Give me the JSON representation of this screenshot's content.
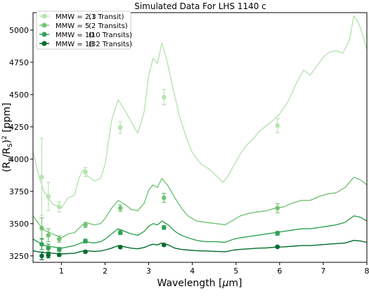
{
  "chart_data": {
    "type": "line",
    "title": "Simulated Data For LHS 1140 c",
    "xlabel_parts": [
      "Wavelength [",
      "μ",
      "m]"
    ],
    "ylabel_parts": [
      "(R",
      "p",
      "/R",
      "S",
      ")",
      "2",
      " [ppm]"
    ],
    "xlim": [
      0.35,
      8.0
    ],
    "ylim": [
      3200,
      5135
    ],
    "x_ticks": [
      1,
      2,
      3,
      4,
      5,
      6,
      7,
      8
    ],
    "y_ticks": [
      3250,
      3500,
      3750,
      4000,
      4250,
      4500,
      4750,
      5000
    ],
    "grid": false,
    "legend_position": "top-left",
    "series": [
      {
        "name": "MMW = 2.3 (1 Transit)",
        "label_mmw": "MMW = 2.3",
        "label_transits": "(1 Transit)",
        "color": "#b8e3b2",
        "model": [
          [
            0.35,
            4050
          ],
          [
            0.5,
            3850
          ],
          [
            0.6,
            3750
          ],
          [
            0.8,
            3650
          ],
          [
            1.0,
            3620
          ],
          [
            1.15,
            3700
          ],
          [
            1.3,
            3720
          ],
          [
            1.4,
            3850
          ],
          [
            1.5,
            3920
          ],
          [
            1.6,
            3870
          ],
          [
            1.75,
            3830
          ],
          [
            1.9,
            3850
          ],
          [
            2.0,
            3960
          ],
          [
            2.15,
            4300
          ],
          [
            2.3,
            4460
          ],
          [
            2.45,
            4380
          ],
          [
            2.6,
            4290
          ],
          [
            2.75,
            4200
          ],
          [
            2.9,
            4370
          ],
          [
            3.0,
            4650
          ],
          [
            3.1,
            4780
          ],
          [
            3.2,
            4740
          ],
          [
            3.3,
            4900
          ],
          [
            3.4,
            4790
          ],
          [
            3.55,
            4560
          ],
          [
            3.7,
            4340
          ],
          [
            3.85,
            4180
          ],
          [
            4.0,
            4050
          ],
          [
            4.2,
            3960
          ],
          [
            4.4,
            3920
          ],
          [
            4.55,
            3870
          ],
          [
            4.7,
            3820
          ],
          [
            4.8,
            3860
          ],
          [
            4.95,
            3950
          ],
          [
            5.1,
            4040
          ],
          [
            5.25,
            4110
          ],
          [
            5.4,
            4160
          ],
          [
            5.55,
            4220
          ],
          [
            5.7,
            4260
          ],
          [
            5.85,
            4300
          ],
          [
            6.0,
            4350
          ],
          [
            6.2,
            4450
          ],
          [
            6.4,
            4600
          ],
          [
            6.55,
            4690
          ],
          [
            6.7,
            4650
          ],
          [
            6.85,
            4720
          ],
          [
            7.0,
            4790
          ],
          [
            7.15,
            4830
          ],
          [
            7.3,
            4840
          ],
          [
            7.45,
            4820
          ],
          [
            7.6,
            4920
          ],
          [
            7.7,
            5110
          ],
          [
            7.8,
            5060
          ],
          [
            7.9,
            4970
          ],
          [
            8.0,
            4850
          ]
        ],
        "points": [
          [
            0.55,
            3860,
            300
          ],
          [
            0.7,
            3710,
            110
          ],
          [
            0.95,
            3630,
            40
          ],
          [
            1.55,
            3900,
            35
          ],
          [
            2.35,
            4245,
            45
          ],
          [
            3.35,
            4480,
            60
          ],
          [
            5.95,
            4260,
            55
          ]
        ]
      },
      {
        "name": "MMW = 5 (2 Transits)",
        "label_mmw": "MMW = 5",
        "label_transits": "(2 Transits)",
        "color": "#74c476",
        "model": [
          [
            0.35,
            3560
          ],
          [
            0.5,
            3490
          ],
          [
            0.6,
            3450
          ],
          [
            0.8,
            3420
          ],
          [
            1.0,
            3390
          ],
          [
            1.15,
            3420
          ],
          [
            1.3,
            3430
          ],
          [
            1.45,
            3480
          ],
          [
            1.55,
            3510
          ],
          [
            1.75,
            3490
          ],
          [
            1.9,
            3500
          ],
          [
            2.0,
            3540
          ],
          [
            2.15,
            3620
          ],
          [
            2.3,
            3680
          ],
          [
            2.45,
            3650
          ],
          [
            2.6,
            3610
          ],
          [
            2.75,
            3600
          ],
          [
            2.9,
            3660
          ],
          [
            3.0,
            3760
          ],
          [
            3.1,
            3800
          ],
          [
            3.2,
            3780
          ],
          [
            3.3,
            3850
          ],
          [
            3.45,
            3790
          ],
          [
            3.6,
            3700
          ],
          [
            3.75,
            3620
          ],
          [
            3.9,
            3560
          ],
          [
            4.1,
            3520
          ],
          [
            4.3,
            3510
          ],
          [
            4.55,
            3500
          ],
          [
            4.75,
            3490
          ],
          [
            4.95,
            3530
          ],
          [
            5.1,
            3560
          ],
          [
            5.3,
            3580
          ],
          [
            5.5,
            3590
          ],
          [
            5.7,
            3600
          ],
          [
            5.9,
            3620
          ],
          [
            6.1,
            3630
          ],
          [
            6.3,
            3660
          ],
          [
            6.5,
            3680
          ],
          [
            6.7,
            3680
          ],
          [
            6.9,
            3710
          ],
          [
            7.1,
            3730
          ],
          [
            7.3,
            3740
          ],
          [
            7.5,
            3780
          ],
          [
            7.7,
            3860
          ],
          [
            7.85,
            3840
          ],
          [
            8.0,
            3800
          ]
        ],
        "points": [
          [
            0.55,
            3465,
            80
          ],
          [
            0.7,
            3410,
            50
          ],
          [
            0.95,
            3380,
            25
          ],
          [
            1.55,
            3490,
            20
          ],
          [
            2.35,
            3620,
            25
          ],
          [
            3.35,
            3700,
            35
          ],
          [
            5.95,
            3620,
            35
          ]
        ]
      },
      {
        "name": "MMW = 10 (10 Transits)",
        "label_mmw": "MMW = 10",
        "label_transits": "(10 Transits)",
        "color": "#31a354",
        "model": [
          [
            0.35,
            3380
          ],
          [
            0.5,
            3350
          ],
          [
            0.6,
            3330
          ],
          [
            0.8,
            3320
          ],
          [
            1.0,
            3310
          ],
          [
            1.15,
            3320
          ],
          [
            1.3,
            3330
          ],
          [
            1.45,
            3350
          ],
          [
            1.55,
            3360
          ],
          [
            1.75,
            3350
          ],
          [
            1.9,
            3360
          ],
          [
            2.0,
            3380
          ],
          [
            2.15,
            3420
          ],
          [
            2.3,
            3460
          ],
          [
            2.45,
            3440
          ],
          [
            2.6,
            3420
          ],
          [
            2.75,
            3410
          ],
          [
            2.9,
            3440
          ],
          [
            3.0,
            3480
          ],
          [
            3.1,
            3500
          ],
          [
            3.2,
            3490
          ],
          [
            3.3,
            3520
          ],
          [
            3.45,
            3490
          ],
          [
            3.6,
            3440
          ],
          [
            3.75,
            3410
          ],
          [
            3.9,
            3390
          ],
          [
            4.1,
            3370
          ],
          [
            4.3,
            3360
          ],
          [
            4.55,
            3360
          ],
          [
            4.75,
            3355
          ],
          [
            4.95,
            3380
          ],
          [
            5.1,
            3390
          ],
          [
            5.3,
            3400
          ],
          [
            5.5,
            3410
          ],
          [
            5.7,
            3420
          ],
          [
            5.9,
            3430
          ],
          [
            6.1,
            3440
          ],
          [
            6.3,
            3450
          ],
          [
            6.5,
            3460
          ],
          [
            6.7,
            3460
          ],
          [
            6.9,
            3470
          ],
          [
            7.1,
            3480
          ],
          [
            7.3,
            3490
          ],
          [
            7.5,
            3510
          ],
          [
            7.7,
            3560
          ],
          [
            7.85,
            3550
          ],
          [
            8.0,
            3520
          ]
        ],
        "points": [
          [
            0.55,
            3340,
            40
          ],
          [
            0.7,
            3310,
            30
          ],
          [
            0.95,
            3300,
            15
          ],
          [
            1.55,
            3365,
            15
          ],
          [
            2.35,
            3430,
            15
          ],
          [
            3.35,
            3470,
            15
          ],
          [
            5.95,
            3425,
            15
          ]
        ]
      },
      {
        "name": "MMW = 18 (32 Transits)",
        "label_mmw": "MMW = 18",
        "label_transits": "(32 Transits)",
        "color": "#006d2c",
        "model": [
          [
            0.35,
            3290
          ],
          [
            0.5,
            3280
          ],
          [
            0.6,
            3275
          ],
          [
            0.8,
            3270
          ],
          [
            1.0,
            3265
          ],
          [
            1.15,
            3268
          ],
          [
            1.3,
            3270
          ],
          [
            1.45,
            3285
          ],
          [
            1.55,
            3290
          ],
          [
            1.75,
            3285
          ],
          [
            1.9,
            3288
          ],
          [
            2.0,
            3295
          ],
          [
            2.15,
            3310
          ],
          [
            2.3,
            3330
          ],
          [
            2.45,
            3320
          ],
          [
            2.6,
            3310
          ],
          [
            2.75,
            3305
          ],
          [
            2.9,
            3315
          ],
          [
            3.0,
            3330
          ],
          [
            3.1,
            3340
          ],
          [
            3.2,
            3335
          ],
          [
            3.3,
            3350
          ],
          [
            3.45,
            3335
          ],
          [
            3.6,
            3310
          ],
          [
            3.75,
            3300
          ],
          [
            3.9,
            3295
          ],
          [
            4.1,
            3290
          ],
          [
            4.3,
            3288
          ],
          [
            4.55,
            3285
          ],
          [
            4.75,
            3282
          ],
          [
            4.95,
            3295
          ],
          [
            5.1,
            3300
          ],
          [
            5.3,
            3305
          ],
          [
            5.5,
            3310
          ],
          [
            5.7,
            3312
          ],
          [
            5.9,
            3318
          ],
          [
            6.1,
            3320
          ],
          [
            6.3,
            3325
          ],
          [
            6.5,
            3330
          ],
          [
            6.7,
            3330
          ],
          [
            6.9,
            3335
          ],
          [
            7.1,
            3340
          ],
          [
            7.3,
            3345
          ],
          [
            7.5,
            3350
          ],
          [
            7.7,
            3370
          ],
          [
            7.85,
            3365
          ],
          [
            8.0,
            3355
          ]
        ],
        "points": [
          [
            0.55,
            3250,
            30
          ],
          [
            0.7,
            3255,
            20
          ],
          [
            0.95,
            3258,
            10
          ],
          [
            1.55,
            3282,
            8
          ],
          [
            2.35,
            3318,
            8
          ],
          [
            3.35,
            3335,
            8
          ],
          [
            5.95,
            3320,
            8
          ]
        ]
      }
    ]
  }
}
